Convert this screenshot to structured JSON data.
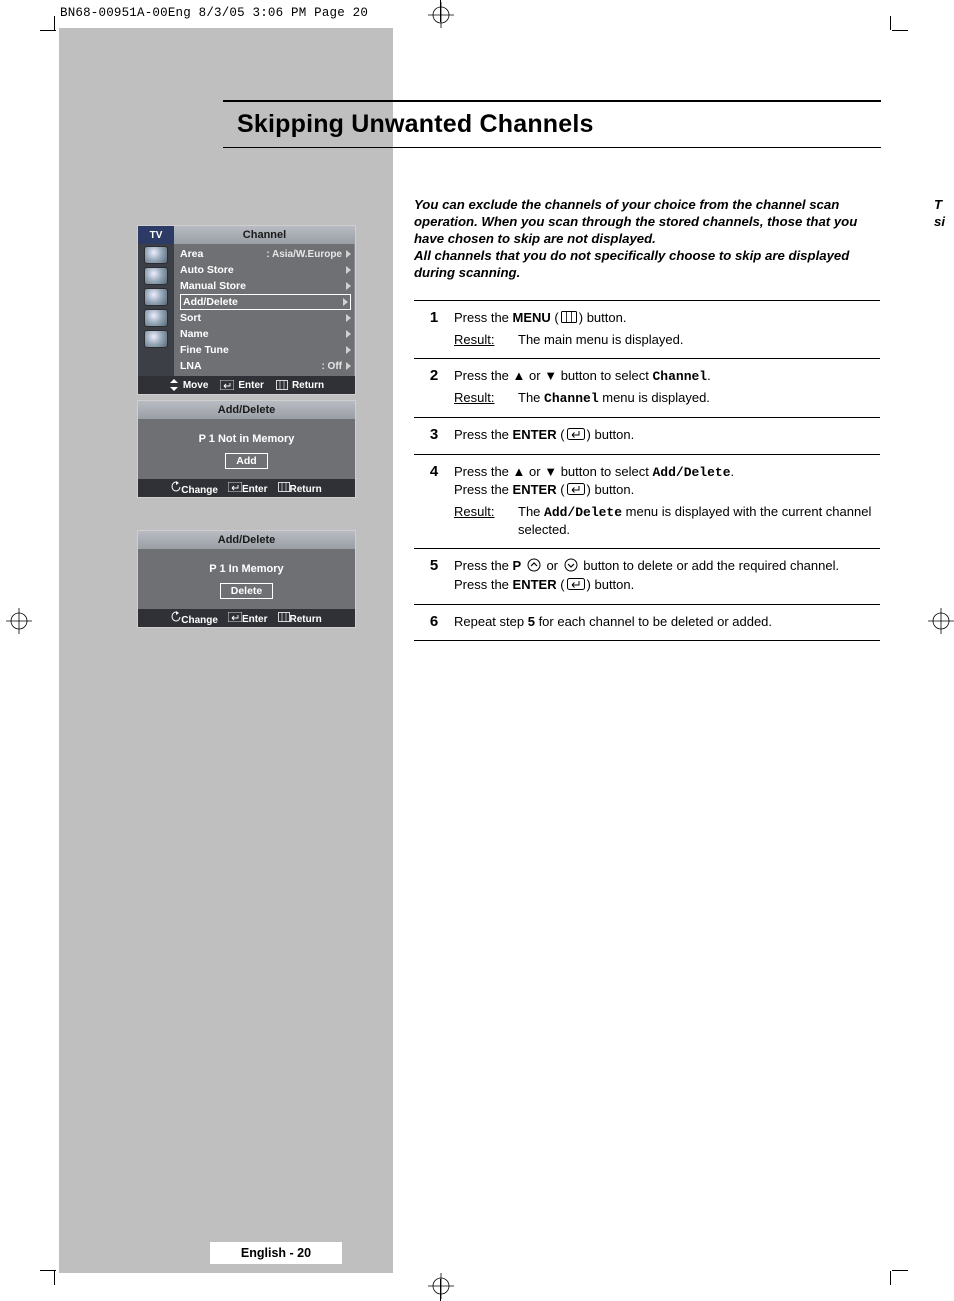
{
  "print_header": "BN68-00951A-00Eng  8/3/05  3:06 PM  Page 20",
  "title": "Skipping Unwanted Channels",
  "intro_lines": [
    "You can exclude the channels of your choice from the channel scan",
    "operation. When you scan through the stored channels, those that you",
    "have chosen to skip are not displayed.",
    "All channels that you do not specifically choose to skip are displayed",
    "during scanning."
  ],
  "osd1": {
    "tv": "TV",
    "title": "Channel",
    "rows": [
      {
        "label": "Area",
        "value": ": Asia/W.Europe",
        "tri": true,
        "selected": false
      },
      {
        "label": "Auto Store",
        "value": "",
        "tri": true,
        "selected": false
      },
      {
        "label": "Manual Store",
        "value": "",
        "tri": true,
        "selected": false
      },
      {
        "label": "Add/Delete",
        "value": "",
        "tri": true,
        "selected": true
      },
      {
        "label": "Sort",
        "value": "",
        "tri": true,
        "selected": false
      },
      {
        "label": "Name",
        "value": "",
        "tri": true,
        "selected": false
      },
      {
        "label": "Fine Tune",
        "value": "",
        "tri": true,
        "selected": false
      },
      {
        "label": "LNA",
        "value": ": Off",
        "tri": true,
        "selected": false
      }
    ],
    "footer": {
      "move": "Move",
      "enter": "Enter",
      "ret": "Return"
    }
  },
  "osd2": {
    "title": "Add/Delete",
    "status": "P  1   Not in Memory",
    "button": "Add",
    "footer": {
      "change": "Change",
      "enter": "Enter",
      "ret": "Return"
    }
  },
  "osd3": {
    "title": "Add/Delete",
    "status": "P  1   In Memory",
    "button": "Delete",
    "footer": {
      "change": "Change",
      "enter": "Enter",
      "ret": "Return"
    }
  },
  "steps": [
    {
      "n": "1",
      "lines": [
        {
          "parts": [
            {
              "t": "Press the "
            },
            {
              "t": "MENU",
              "b": true
            },
            {
              "t": " ("
            },
            {
              "icon": "menu"
            },
            {
              "t": ") button."
            }
          ]
        }
      ],
      "result": "The main menu is displayed."
    },
    {
      "n": "2",
      "lines": [
        {
          "parts": [
            {
              "t": "Press the "
            },
            {
              "sym": "▲"
            },
            {
              "t": " or "
            },
            {
              "sym": "▼"
            },
            {
              "t": " button to select "
            },
            {
              "t": "Channel",
              "mono": true
            },
            {
              "t": "."
            }
          ]
        }
      ],
      "result_rich": [
        {
          "t": "The "
        },
        {
          "t": "Channel",
          "mono": true
        },
        {
          "t": " menu is displayed."
        }
      ]
    },
    {
      "n": "3",
      "lines": [
        {
          "parts": [
            {
              "t": "Press the "
            },
            {
              "t": "ENTER",
              "b": true
            },
            {
              "t": " ("
            },
            {
              "icon": "enter"
            },
            {
              "t": ") button."
            }
          ]
        }
      ]
    },
    {
      "n": "4",
      "lines": [
        {
          "parts": [
            {
              "t": "Press the "
            },
            {
              "sym": "▲"
            },
            {
              "t": " or "
            },
            {
              "sym": "▼"
            },
            {
              "t": " button to select "
            },
            {
              "t": "Add/Delete",
              "mono": true
            },
            {
              "t": "."
            }
          ]
        },
        {
          "parts": [
            {
              "t": "Press the "
            },
            {
              "t": "ENTER",
              "b": true
            },
            {
              "t": " ("
            },
            {
              "icon": "enter"
            },
            {
              "t": ") button."
            }
          ]
        }
      ],
      "result_rich": [
        {
          "t": "The "
        },
        {
          "t": "Add/Delete",
          "mono": true
        },
        {
          "t": " menu is displayed with the current channel selected."
        }
      ]
    },
    {
      "n": "5",
      "lines": [
        {
          "parts": [
            {
              "t": "Press the "
            },
            {
              "t": "P",
              "b": true
            },
            {
              "t": " "
            },
            {
              "icon": "p-up"
            },
            {
              "t": " or "
            },
            {
              "icon": "p-dn"
            },
            {
              "t": " button to delete or add the required channel."
            }
          ]
        },
        {
          "parts": [
            {
              "t": "Press the "
            },
            {
              "t": "ENTER",
              "b": true
            },
            {
              "t": " ("
            },
            {
              "icon": "enter"
            },
            {
              "t": ") button."
            }
          ]
        }
      ]
    },
    {
      "n": "6",
      "lines": [
        {
          "parts": [
            {
              "t": "Repeat step "
            },
            {
              "t": "5",
              "b": true
            },
            {
              "t": " for each channel to be deleted or added."
            }
          ]
        }
      ]
    }
  ],
  "result_label": "Result:",
  "page_footer": "English - 20",
  "colors": {
    "page_bg": "#bfbfbf",
    "osd_bg": "#6e7074",
    "osd_title_grad_top": "#b8bcc2",
    "osd_title_grad_bot": "#9a9ea5",
    "osd_footer_bg": "#2f3136",
    "osd_sidebar_bg": "#3c3f45",
    "osd_tv_bg": "#2c3a66"
  },
  "bleed_right": [
    "T",
    "si"
  ]
}
